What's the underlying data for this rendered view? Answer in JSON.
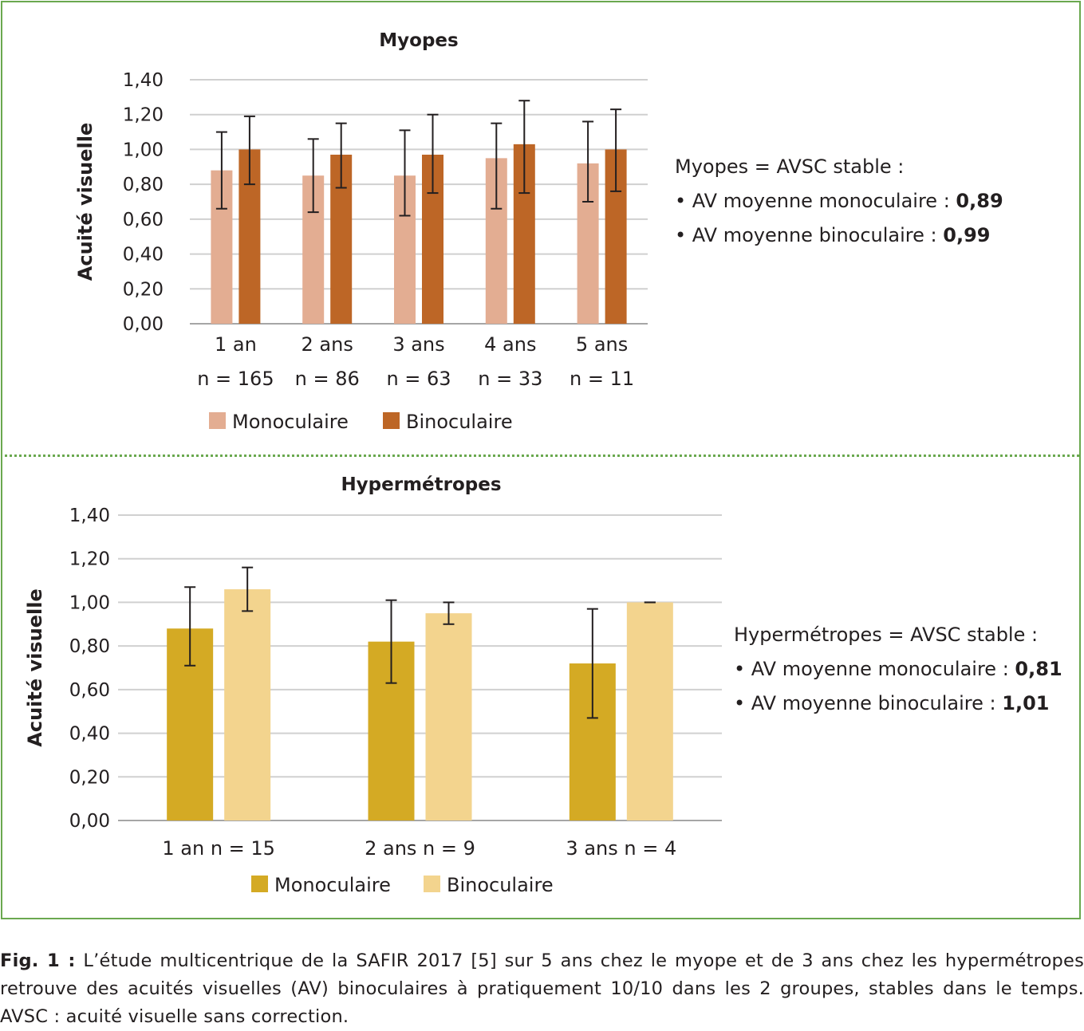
{
  "colors": {
    "frame": "#6aa84f",
    "myopes_mono": "#e3ad92",
    "myopes_bino": "#bd6626",
    "hyper_mono": "#d4aa24",
    "hyper_bino": "#f3d48e"
  },
  "chart_data": [
    {
      "type": "bar",
      "title": "Myopes",
      "ylabel": "Acuité visuelle",
      "xlabel": "",
      "ylim": [
        0,
        1.4
      ],
      "yticks": [
        "0,00",
        "0,20",
        "0,40",
        "0,60",
        "0,80",
        "1,00",
        "1,20",
        "1,40"
      ],
      "categories": [
        [
          "1 an",
          "n = 165"
        ],
        [
          "2 ans",
          "n = 86"
        ],
        [
          "3 ans",
          "n = 63"
        ],
        [
          "4 ans",
          "n = 33"
        ],
        [
          "5 ans",
          "n = 11"
        ]
      ],
      "series": [
        {
          "name": "Monoculaire",
          "values": [
            0.88,
            0.85,
            0.85,
            0.95,
            0.92
          ],
          "error_low": [
            0.66,
            0.64,
            0.62,
            0.66,
            0.7
          ],
          "error_high": [
            1.1,
            1.06,
            1.11,
            1.15,
            1.16
          ]
        },
        {
          "name": "Binoculaire",
          "values": [
            1.0,
            0.97,
            0.97,
            1.03,
            1.0
          ],
          "error_low": [
            0.8,
            0.78,
            0.75,
            0.75,
            0.76
          ],
          "error_high": [
            1.19,
            1.15,
            1.2,
            1.28,
            1.23
          ]
        }
      ],
      "grid": true,
      "legend": "bottom"
    },
    {
      "type": "bar",
      "title": "Hypermétropes",
      "ylabel": "Acuité visuelle",
      "xlabel": "",
      "ylim": [
        0,
        1.4
      ],
      "yticks": [
        "0,00",
        "0,20",
        "0,40",
        "0,60",
        "0,80",
        "1,00",
        "1,20",
        "1,40"
      ],
      "categories": [
        [
          "1 an n = 15"
        ],
        [
          "2 ans n = 9"
        ],
        [
          "3 ans n = 4"
        ]
      ],
      "series": [
        {
          "name": "Monoculaire",
          "values": [
            0.88,
            0.82,
            0.72
          ],
          "error_low": [
            0.71,
            0.63,
            0.47
          ],
          "error_high": [
            1.07,
            1.01,
            0.97
          ]
        },
        {
          "name": "Binoculaire",
          "values": [
            1.06,
            0.95,
            1.0
          ],
          "error_low": [
            0.96,
            0.9,
            1.0
          ],
          "error_high": [
            1.16,
            1.0,
            1.0
          ]
        }
      ],
      "grid": true,
      "legend": "bottom"
    }
  ],
  "notes": [
    {
      "heading": "Myopes = AVSC stable :",
      "lines": [
        {
          "text": "• AV moyenne monoculaire : ",
          "value": "0,89"
        },
        {
          "text": "• AV moyenne binoculaire : ",
          "value": "0,99"
        }
      ]
    },
    {
      "heading": "Hypermétropes = AVSC stable :",
      "lines": [
        {
          "text": "• AV moyenne monoculaire : ",
          "value": "0,81"
        },
        {
          "text": "• AV moyenne binoculaire : ",
          "value": "1,01"
        }
      ]
    }
  ],
  "caption": {
    "label": "Fig. 1 :",
    "text": " L’étude multicentrique de la SAFIR 2017 [5] sur 5 ans chez le myope et de 3 ans chez les hypermétropes retrouve des acuités visuelles (AV) binoculaires à pratiquement 10/10 dans les 2 groupes, stables dans le temps. AVSC : acuité visuelle sans correction."
  }
}
